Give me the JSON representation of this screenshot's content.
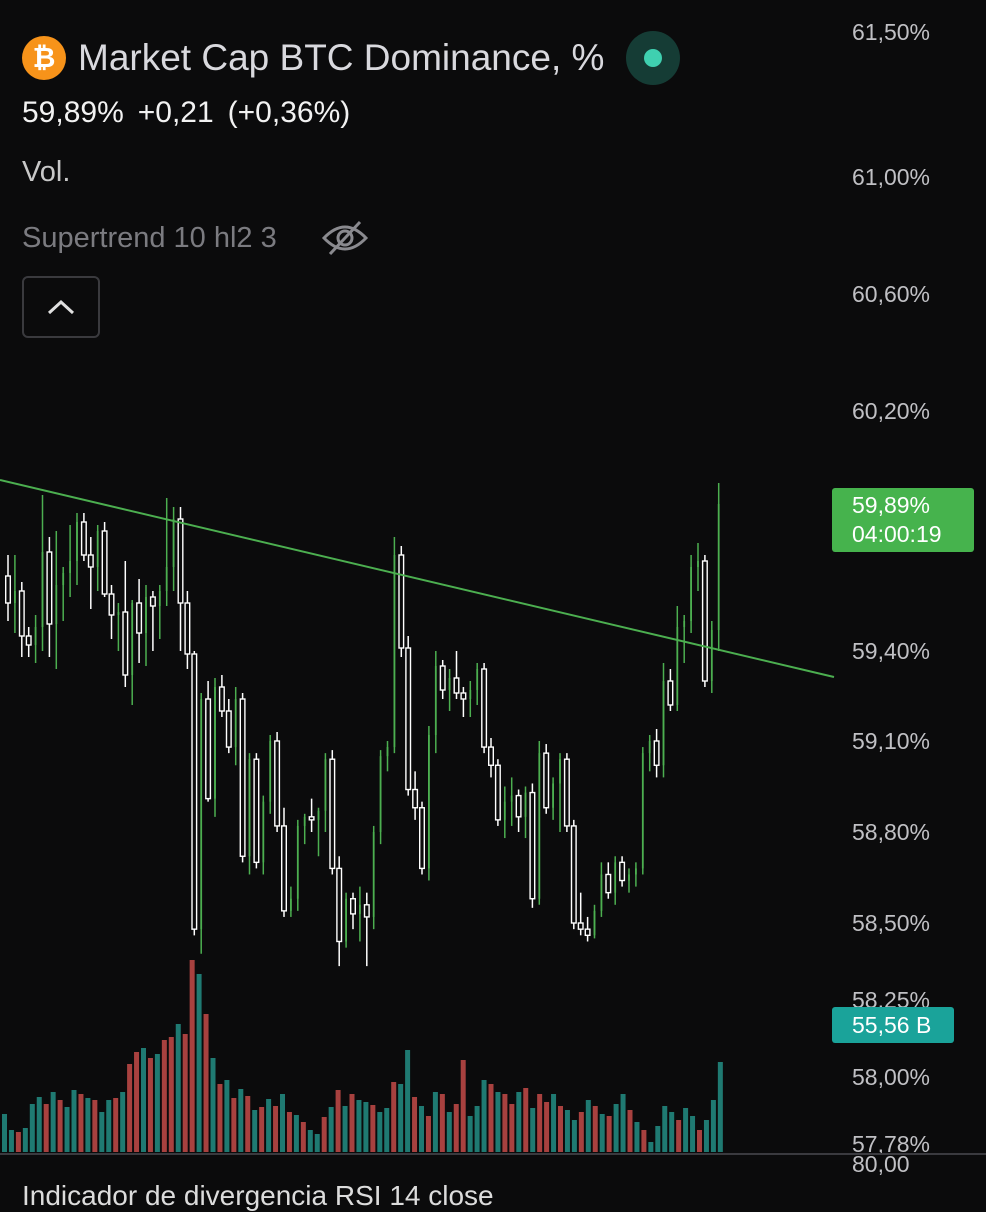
{
  "header": {
    "coin_symbol": "₿",
    "title": "Market Cap BTC Dominance, %",
    "price": "59,89%",
    "change": "+0,21",
    "change_pct": "(+0,36%)",
    "volume_label": "Vol.",
    "indicator": "Supertrend 10 hl2 3"
  },
  "price_tag": {
    "value": "59,89%",
    "countdown": "04:00:19"
  },
  "volume_tag": "55,56 B",
  "bottom_axis_label": "80,00",
  "bottom_indicator": "Indicador de divergencia RSI 14 close",
  "colors": {
    "up": "#26a69a",
    "down": "#ef5350",
    "candle": "#ffffff",
    "trend": "#4caf50",
    "tag_green": "#46b34d",
    "tag_teal": "#1aa39a"
  },
  "chart_data": {
    "type": "candlestick",
    "y_ticks": [
      "61,50%",
      "61,00%",
      "60,60%",
      "60,20%",
      "59,40%",
      "59,10%",
      "58,80%",
      "58,50%",
      "58,25%",
      "58,00%",
      "57,78%"
    ],
    "y_tick_values": [
      61.5,
      61.0,
      60.6,
      60.2,
      59.4,
      59.1,
      58.8,
      58.5,
      58.25,
      58.0,
      57.78
    ],
    "trendline": [
      [
        0,
        59.97
      ],
      [
        140,
        59.38
      ]
    ],
    "candles": [
      [
        59.65,
        59.72,
        59.5,
        59.56
      ],
      [
        59.56,
        59.72,
        59.46,
        59.6
      ],
      [
        59.6,
        59.63,
        59.38,
        59.45
      ],
      [
        59.45,
        59.48,
        59.38,
        59.42
      ],
      [
        59.42,
        59.52,
        59.36,
        59.48
      ],
      [
        59.48,
        59.92,
        59.4,
        59.73
      ],
      [
        59.73,
        59.78,
        59.38,
        59.49
      ],
      [
        59.49,
        59.8,
        59.34,
        59.62
      ],
      [
        59.62,
        59.68,
        59.5,
        59.66
      ],
      [
        59.66,
        59.82,
        59.58,
        59.7
      ],
      [
        59.7,
        59.86,
        59.62,
        59.83
      ],
      [
        59.83,
        59.86,
        59.7,
        59.72
      ],
      [
        59.72,
        59.78,
        59.54,
        59.68
      ],
      [
        59.68,
        59.82,
        59.6,
        59.8
      ],
      [
        59.8,
        59.83,
        59.58,
        59.59
      ],
      [
        59.59,
        59.62,
        59.44,
        59.52
      ],
      [
        59.52,
        59.56,
        59.4,
        59.53
      ],
      [
        59.53,
        59.7,
        59.28,
        59.32
      ],
      [
        59.32,
        59.57,
        59.22,
        59.56
      ],
      [
        59.56,
        59.64,
        59.36,
        59.46
      ],
      [
        59.46,
        59.62,
        59.35,
        59.58
      ],
      [
        59.58,
        59.6,
        59.4,
        59.55
      ],
      [
        59.55,
        59.62,
        59.44,
        59.6
      ],
      [
        59.6,
        59.91,
        59.55,
        59.68
      ],
      [
        59.68,
        59.88,
        59.6,
        59.84
      ],
      [
        59.84,
        59.88,
        59.4,
        59.56
      ],
      [
        59.56,
        59.6,
        59.34,
        59.39
      ],
      [
        59.39,
        59.4,
        58.46,
        58.48
      ],
      [
        58.48,
        59.26,
        58.4,
        59.24
      ],
      [
        59.24,
        59.3,
        58.9,
        58.91
      ],
      [
        58.91,
        59.31,
        58.85,
        59.28
      ],
      [
        59.28,
        59.32,
        59.18,
        59.2
      ],
      [
        59.2,
        59.24,
        59.06,
        59.08
      ],
      [
        59.08,
        59.28,
        59.02,
        59.24
      ],
      [
        59.24,
        59.26,
        58.7,
        58.72
      ],
      [
        58.72,
        59.06,
        58.66,
        59.04
      ],
      [
        59.04,
        59.06,
        58.68,
        58.7
      ],
      [
        58.7,
        58.92,
        58.66,
        58.9
      ],
      [
        58.9,
        59.12,
        58.86,
        59.1
      ],
      [
        59.1,
        59.13,
        58.8,
        58.82
      ],
      [
        58.82,
        58.88,
        58.52,
        58.54
      ],
      [
        58.54,
        58.62,
        58.52,
        58.58
      ],
      [
        58.58,
        58.84,
        58.54,
        58.82
      ],
      [
        58.82,
        58.86,
        58.76,
        58.85
      ],
      [
        58.85,
        58.91,
        58.8,
        58.84
      ],
      [
        58.84,
        58.88,
        58.72,
        58.87
      ],
      [
        58.87,
        59.06,
        58.8,
        59.04
      ],
      [
        59.04,
        59.07,
        58.66,
        58.68
      ],
      [
        58.68,
        58.72,
        58.36,
        58.44
      ],
      [
        58.44,
        58.6,
        58.42,
        58.58
      ],
      [
        58.58,
        58.6,
        58.48,
        58.53
      ],
      [
        58.53,
        58.62,
        58.44,
        58.56
      ],
      [
        58.56,
        58.6,
        58.36,
        58.52
      ],
      [
        58.52,
        58.82,
        58.48,
        58.8
      ],
      [
        58.8,
        59.07,
        58.76,
        59.05
      ],
      [
        59.05,
        59.1,
        59.0,
        59.08
      ],
      [
        59.08,
        59.78,
        59.06,
        59.72
      ],
      [
        59.72,
        59.75,
        59.38,
        59.41
      ],
      [
        59.41,
        59.45,
        58.92,
        58.94
      ],
      [
        58.94,
        59.0,
        58.84,
        58.88
      ],
      [
        58.88,
        58.9,
        58.66,
        58.68
      ],
      [
        58.68,
        59.15,
        58.64,
        59.12
      ],
      [
        59.12,
        59.4,
        59.06,
        59.35
      ],
      [
        59.35,
        59.37,
        59.24,
        59.27
      ],
      [
        59.27,
        59.34,
        59.2,
        59.31
      ],
      [
        59.31,
        59.4,
        59.24,
        59.26
      ],
      [
        59.26,
        59.28,
        59.18,
        59.24
      ],
      [
        59.24,
        59.3,
        59.18,
        59.27
      ],
      [
        59.27,
        59.36,
        59.22,
        59.34
      ],
      [
        59.34,
        59.36,
        59.06,
        59.08
      ],
      [
        59.08,
        59.11,
        58.98,
        59.02
      ],
      [
        59.02,
        59.04,
        58.82,
        58.84
      ],
      [
        58.84,
        58.95,
        58.78,
        58.9
      ],
      [
        58.9,
        58.98,
        58.82,
        58.92
      ],
      [
        58.92,
        58.94,
        58.8,
        58.85
      ],
      [
        58.85,
        58.95,
        58.78,
        58.93
      ],
      [
        58.93,
        58.96,
        58.55,
        58.58
      ],
      [
        58.58,
        59.1,
        58.56,
        59.06
      ],
      [
        59.06,
        59.09,
        58.86,
        58.88
      ],
      [
        58.88,
        58.98,
        58.84,
        58.96
      ],
      [
        58.96,
        59.06,
        58.8,
        59.04
      ],
      [
        59.04,
        59.06,
        58.8,
        58.82
      ],
      [
        58.82,
        58.84,
        58.48,
        58.5
      ],
      [
        58.5,
        58.6,
        58.46,
        58.48
      ],
      [
        58.48,
        58.52,
        58.44,
        58.46
      ],
      [
        58.46,
        58.56,
        58.45,
        58.54
      ],
      [
        58.54,
        58.7,
        58.52,
        58.66
      ],
      [
        58.66,
        58.7,
        58.58,
        58.6
      ],
      [
        58.6,
        58.72,
        58.56,
        58.7
      ],
      [
        58.7,
        58.72,
        58.62,
        58.64
      ],
      [
        58.64,
        58.68,
        58.6,
        58.66
      ],
      [
        58.66,
        58.7,
        58.62,
        58.68
      ],
      [
        58.68,
        59.08,
        58.66,
        59.06
      ],
      [
        59.06,
        59.12,
        59.0,
        59.1
      ],
      [
        59.1,
        59.14,
        58.98,
        59.02
      ],
      [
        59.02,
        59.36,
        58.98,
        59.3
      ],
      [
        59.3,
        59.34,
        59.2,
        59.22
      ],
      [
        59.22,
        59.55,
        59.2,
        59.48
      ],
      [
        59.48,
        59.52,
        59.36,
        59.5
      ],
      [
        59.5,
        59.72,
        59.46,
        59.68
      ],
      [
        59.68,
        59.76,
        59.6,
        59.7
      ],
      [
        59.7,
        59.72,
        59.28,
        59.3
      ],
      [
        59.3,
        59.5,
        59.26,
        59.47
      ],
      [
        59.47,
        59.96,
        59.4,
        59.89
      ]
    ],
    "volume": [
      [
        38,
        "u"
      ],
      [
        22,
        "u"
      ],
      [
        20,
        "d"
      ],
      [
        24,
        "u"
      ],
      [
        48,
        "u"
      ],
      [
        55,
        "u"
      ],
      [
        48,
        "d"
      ],
      [
        60,
        "u"
      ],
      [
        52,
        "d"
      ],
      [
        45,
        "u"
      ],
      [
        62,
        "u"
      ],
      [
        58,
        "d"
      ],
      [
        54,
        "u"
      ],
      [
        52,
        "d"
      ],
      [
        40,
        "u"
      ],
      [
        52,
        "u"
      ],
      [
        54,
        "d"
      ],
      [
        60,
        "u"
      ],
      [
        88,
        "d"
      ],
      [
        100,
        "d"
      ],
      [
        104,
        "u"
      ],
      [
        94,
        "d"
      ],
      [
        98,
        "u"
      ],
      [
        112,
        "d"
      ],
      [
        115,
        "d"
      ],
      [
        128,
        "u"
      ],
      [
        118,
        "d"
      ],
      [
        192,
        "d"
      ],
      [
        178,
        "u"
      ],
      [
        138,
        "d"
      ],
      [
        94,
        "u"
      ],
      [
        68,
        "d"
      ],
      [
        72,
        "u"
      ],
      [
        54,
        "d"
      ],
      [
        63,
        "u"
      ],
      [
        56,
        "d"
      ],
      [
        42,
        "u"
      ],
      [
        45,
        "d"
      ],
      [
        53,
        "u"
      ],
      [
        46,
        "d"
      ],
      [
        58,
        "u"
      ],
      [
        40,
        "d"
      ],
      [
        37,
        "u"
      ],
      [
        30,
        "d"
      ],
      [
        22,
        "u"
      ],
      [
        18,
        "u"
      ],
      [
        35,
        "d"
      ],
      [
        45,
        "u"
      ],
      [
        62,
        "d"
      ],
      [
        46,
        "u"
      ],
      [
        58,
        "d"
      ],
      [
        52,
        "u"
      ],
      [
        50,
        "u"
      ],
      [
        47,
        "d"
      ],
      [
        40,
        "u"
      ],
      [
        44,
        "u"
      ],
      [
        70,
        "d"
      ],
      [
        68,
        "u"
      ],
      [
        102,
        "u"
      ],
      [
        55,
        "d"
      ],
      [
        46,
        "u"
      ],
      [
        36,
        "d"
      ],
      [
        60,
        "u"
      ],
      [
        58,
        "d"
      ],
      [
        40,
        "u"
      ],
      [
        48,
        "d"
      ],
      [
        92,
        "d"
      ],
      [
        36,
        "u"
      ],
      [
        46,
        "u"
      ],
      [
        72,
        "u"
      ],
      [
        68,
        "d"
      ],
      [
        60,
        "u"
      ],
      [
        58,
        "d"
      ],
      [
        48,
        "d"
      ],
      [
        60,
        "u"
      ],
      [
        64,
        "d"
      ],
      [
        44,
        "u"
      ],
      [
        58,
        "d"
      ],
      [
        50,
        "d"
      ],
      [
        58,
        "u"
      ],
      [
        46,
        "d"
      ],
      [
        42,
        "u"
      ],
      [
        32,
        "u"
      ],
      [
        40,
        "d"
      ],
      [
        52,
        "u"
      ],
      [
        46,
        "d"
      ],
      [
        38,
        "u"
      ],
      [
        36,
        "d"
      ],
      [
        48,
        "u"
      ],
      [
        58,
        "u"
      ],
      [
        42,
        "d"
      ],
      [
        30,
        "u"
      ],
      [
        22,
        "d"
      ],
      [
        10,
        "u"
      ],
      [
        26,
        "u"
      ],
      [
        46,
        "u"
      ],
      [
        40,
        "u"
      ],
      [
        32,
        "d"
      ],
      [
        44,
        "u"
      ],
      [
        36,
        "u"
      ],
      [
        22,
        "d"
      ],
      [
        32,
        "u"
      ],
      [
        52,
        "u"
      ],
      [
        90,
        "u"
      ]
    ]
  }
}
